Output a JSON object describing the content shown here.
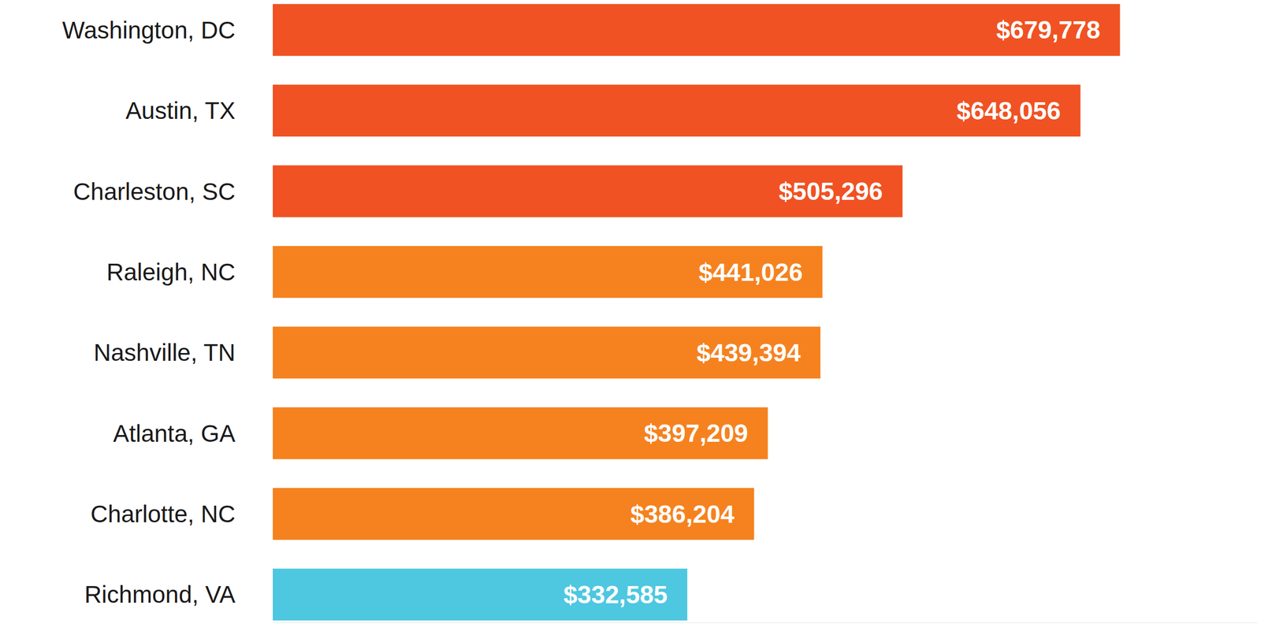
{
  "chart_data": {
    "type": "bar",
    "orientation": "horizontal",
    "categories": [
      "Washington, DC",
      "Austin, TX",
      "Charleston, SC",
      "Raleigh, NC",
      "Nashville, TN",
      "Atlanta, GA",
      "Charlotte, NC",
      "Richmond, VA"
    ],
    "values": [
      679778,
      648056,
      505296,
      441026,
      439394,
      397209,
      386204,
      332585
    ],
    "value_labels": [
      "$679,778",
      "$648,056",
      "$505,296",
      "$441,026",
      "$439,394",
      "$397,209",
      "$386,204",
      "$332,585"
    ],
    "colors": [
      "#f05223",
      "#f05223",
      "#f05223",
      "#f5821f",
      "#f5821f",
      "#f5821f",
      "#f5821f",
      "#4ec7e0"
    ],
    "xlim": [
      0,
      790000
    ],
    "xticks": [],
    "data_labels": true,
    "tick_labels": "y",
    "grid": false
  }
}
